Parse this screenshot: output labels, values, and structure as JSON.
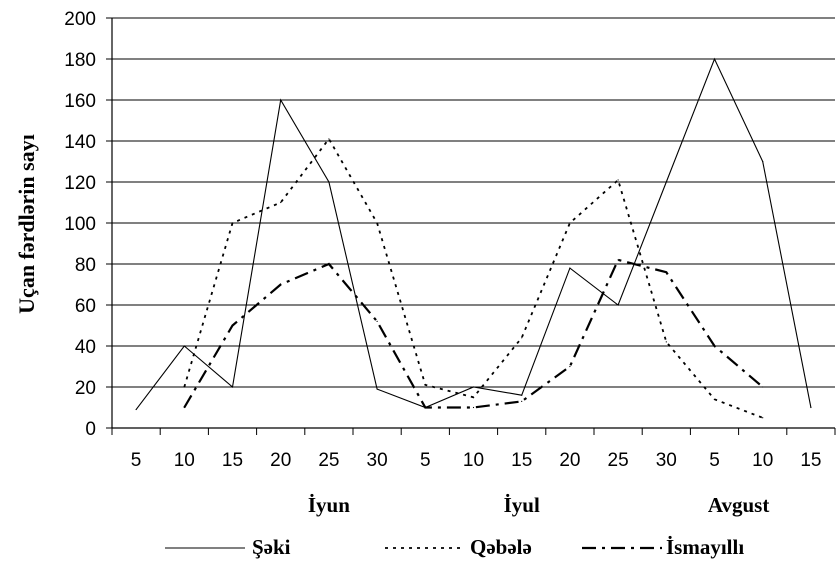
{
  "chart_data": {
    "type": "line",
    "ylabel": "Uçan fərdlərin sayı",
    "ylim": [
      0,
      200
    ],
    "y_ticks": [
      "0",
      "20",
      "40",
      "60",
      "80",
      "100",
      "120",
      "140",
      "160",
      "180",
      "200"
    ],
    "x_ticks": [
      "5",
      "10",
      "15",
      "20",
      "25",
      "30",
      "5",
      "10",
      "15",
      "20",
      "25",
      "30",
      "5",
      "10",
      "15"
    ],
    "months": [
      "İyun",
      "İyul",
      "Avgust"
    ],
    "grid": true,
    "legend_position": "bottom",
    "series": [
      {
        "name": "Şəki",
        "style": "solid",
        "points": [
          {
            "x": 0.5,
            "y": 9
          },
          {
            "x": 1.5,
            "y": 40
          },
          {
            "x": 2.5,
            "y": 20
          },
          {
            "x": 3.5,
            "y": 160
          },
          {
            "x": 4.5,
            "y": 120
          },
          {
            "x": 5.5,
            "y": 19
          },
          {
            "x": 6.5,
            "y": 10
          },
          {
            "x": 7.5,
            "y": 20
          },
          {
            "x": 8.5,
            "y": 16
          },
          {
            "x": 9.5,
            "y": 78
          },
          {
            "x": 10.5,
            "y": 60
          },
          {
            "x": 11.5,
            "y": 120
          },
          {
            "x": 12.5,
            "y": 180
          },
          {
            "x": 13.5,
            "y": 130
          },
          {
            "x": 14.5,
            "y": 10
          }
        ]
      },
      {
        "name": "Qəbələ",
        "style": "dotted",
        "points": [
          {
            "x": 1.5,
            "y": 20
          },
          {
            "x": 2.5,
            "y": 100
          },
          {
            "x": 3.5,
            "y": 110
          },
          {
            "x": 4.5,
            "y": 141
          },
          {
            "x": 5.5,
            "y": 100
          },
          {
            "x": 6.5,
            "y": 21
          },
          {
            "x": 7.5,
            "y": 15
          },
          {
            "x": 8.5,
            "y": 44
          },
          {
            "x": 9.5,
            "y": 100
          },
          {
            "x": 10.5,
            "y": 121
          },
          {
            "x": 11.5,
            "y": 42
          },
          {
            "x": 12.5,
            "y": 14
          },
          {
            "x": 13.5,
            "y": 5
          }
        ]
      },
      {
        "name": "İsmayıllı",
        "style": "dashdot",
        "points": [
          {
            "x": 1.5,
            "y": 10
          },
          {
            "x": 2.5,
            "y": 50
          },
          {
            "x": 3.5,
            "y": 70
          },
          {
            "x": 4.5,
            "y": 80
          },
          {
            "x": 5.5,
            "y": 52
          },
          {
            "x": 6.5,
            "y": 10
          },
          {
            "x": 7.5,
            "y": 10
          },
          {
            "x": 8.5,
            "y": 13
          },
          {
            "x": 9.5,
            "y": 30
          },
          {
            "x": 10.5,
            "y": 82
          },
          {
            "x": 11.5,
            "y": 76
          },
          {
            "x": 12.5,
            "y": 40
          },
          {
            "x": 13.5,
            "y": 20
          }
        ]
      }
    ]
  }
}
